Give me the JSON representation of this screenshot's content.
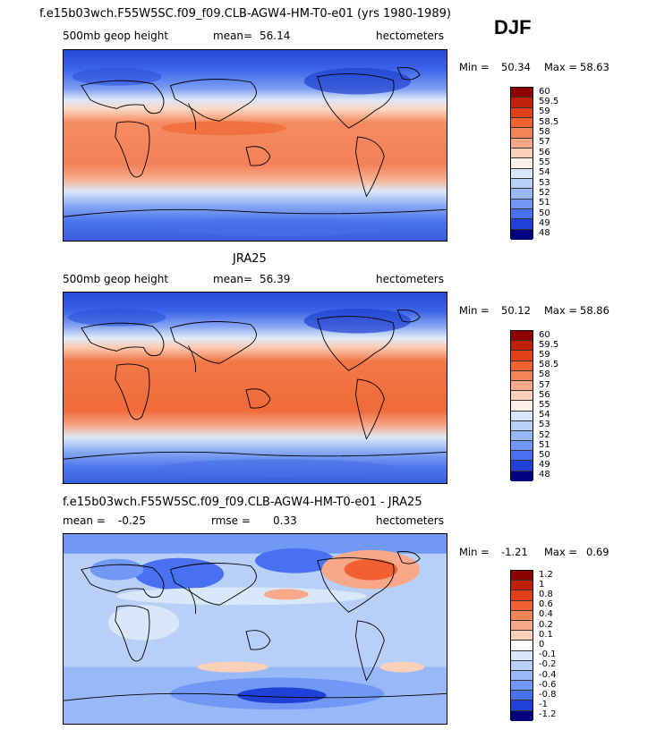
{
  "header": {
    "title": "f.e15b03wch.F55W5SC.f09_f09.CLB-AGW4-HM-T0-e01 (yrs 1980-1989)",
    "season": "DJF"
  },
  "panels": [
    {
      "variable": "500mb geop height",
      "mean_label": "mean=",
      "mean_value": "56.14",
      "units": "hectometers",
      "min_label": "Min =",
      "min_value": "50.34",
      "max_label": "Max =",
      "max_value": "58.63",
      "colorbar_labels": [
        "60",
        "59.5",
        "59",
        "58.5",
        "58",
        "57",
        "56",
        "55",
        "54",
        "53",
        "52",
        "51",
        "50",
        "49",
        "48"
      ]
    },
    {
      "title": "JRA25",
      "variable": "500mb geop height",
      "mean_label": "mean=",
      "mean_value": "56.39",
      "units": "hectometers",
      "min_label": "Min =",
      "min_value": "50.12",
      "max_label": "Max =",
      "max_value": "58.86",
      "colorbar_labels": [
        "60",
        "59.5",
        "59",
        "58.5",
        "58",
        "57",
        "56",
        "55",
        "54",
        "53",
        "52",
        "51",
        "50",
        "49",
        "48"
      ]
    },
    {
      "title": "f.e15b03wch.F55W5SC.f09_f09.CLB-AGW4-HM-T0-e01 - JRA25",
      "mean_label": "mean =",
      "mean_value": "-0.25",
      "rmse_label": "rmse =",
      "rmse_value": "0.33",
      "units": "hectometers",
      "min_label": "Min =",
      "min_value": "-1.21",
      "max_label": "Max =",
      "max_value": "0.69",
      "colorbar_labels": [
        "1.2",
        "1",
        "0.8",
        "0.6",
        "0.4",
        "0.2",
        "0.1",
        "0",
        "-0.1",
        "-0.2",
        "-0.4",
        "-0.6",
        "-0.8",
        "-1",
        "-1.2"
      ]
    }
  ],
  "colors": {
    "abs_scale": [
      "#8b0000",
      "#c0200a",
      "#e0401a",
      "#f06030",
      "#f48458",
      "#f8a888",
      "#fbd0b8",
      "#fdf0e8",
      "#d8e8fa",
      "#b8d0f8",
      "#98b8f8",
      "#7098f4",
      "#4870f0",
      "#2040d8",
      "#000080"
    ],
    "diff_scale": [
      "#8b0000",
      "#c0200a",
      "#e0401a",
      "#f06030",
      "#f48458",
      "#f8a888",
      "#fbd0b8",
      "#ffffff",
      "#d8e8fa",
      "#b8d0f8",
      "#98b8f8",
      "#7098f4",
      "#4870f0",
      "#2040d8",
      "#000080"
    ]
  }
}
